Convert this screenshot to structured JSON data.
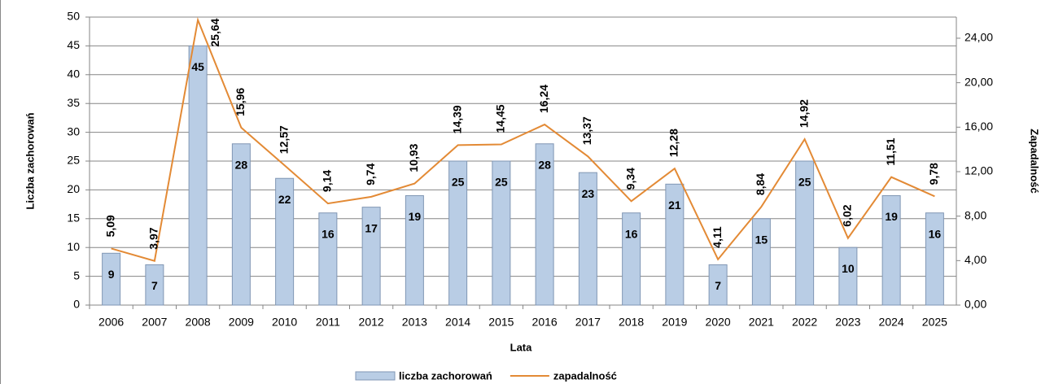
{
  "chart_data": {
    "type": "bar",
    "categories": [
      "2006",
      "2007",
      "2008",
      "2009",
      "2010",
      "2011",
      "2012",
      "2013",
      "2014",
      "2015",
      "2016",
      "2017",
      "2018",
      "2019",
      "2020",
      "2021",
      "2022",
      "2023",
      "2024",
      "2025"
    ],
    "series": [
      {
        "name": "liczba zachorowań",
        "type": "bar",
        "color": "#b9cde5",
        "values": [
          9,
          7,
          45,
          28,
          22,
          16,
          17,
          19,
          25,
          25,
          28,
          23,
          16,
          21,
          7,
          15,
          25,
          10,
          19,
          16
        ]
      },
      {
        "name": "zapadalność",
        "type": "line",
        "axis": "y2",
        "color": "#e38a35",
        "values": [
          5.09,
          3.97,
          25.64,
          15.96,
          12.57,
          9.14,
          9.74,
          10.93,
          14.39,
          14.45,
          16.24,
          13.37,
          9.34,
          12.28,
          4.11,
          8.84,
          14.92,
          6.02,
          11.51,
          9.78
        ],
        "value_labels": [
          "5,09",
          "3,97",
          "25,64",
          "15,96",
          "12,57",
          "9,14",
          "9,74",
          "10,93",
          "14,39",
          "14,45",
          "16,24",
          "13,37",
          "9,34",
          "12,28",
          "4,11",
          "8,84",
          "14,92",
          "6,02",
          "11,51",
          "9,78"
        ]
      }
    ],
    "xlabel": "Lata",
    "ylabel": "Liczba zachorowań",
    "y2label": "Zapadalność",
    "ylim": [
      0,
      50
    ],
    "yticks": [
      0,
      5,
      10,
      15,
      20,
      25,
      30,
      35,
      40,
      45,
      50
    ],
    "y2lim": [
      0,
      25.9
    ],
    "y2ticks": [
      {
        "value": 0,
        "label": "0,00"
      },
      {
        "value": 4,
        "label": "4,00"
      },
      {
        "value": 8,
        "label": "8,00"
      },
      {
        "value": 12,
        "label": "12,00"
      },
      {
        "value": 16,
        "label": "16,00"
      },
      {
        "value": 20,
        "label": "20,00"
      },
      {
        "value": 24,
        "label": "24,00"
      }
    ],
    "grid": true,
    "legend": "bottom"
  }
}
